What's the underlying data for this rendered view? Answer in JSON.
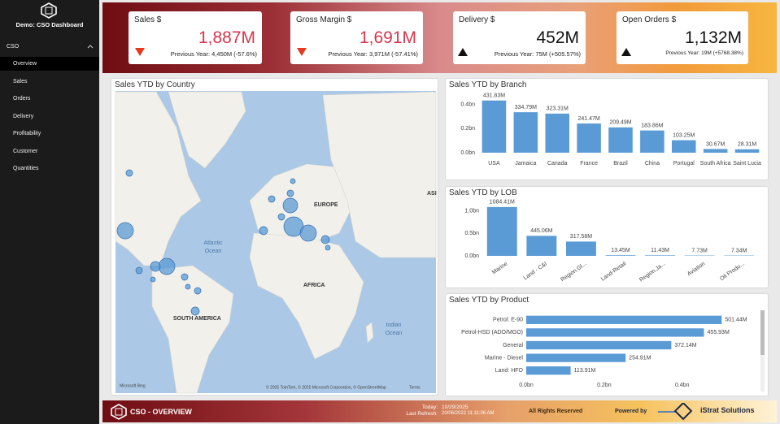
{
  "sidebar": {
    "title": "Demo: CSO Dashboard",
    "section": "CSO",
    "items": [
      "Overview",
      "Sales",
      "Orders",
      "Delivery",
      "Profitability",
      "Customer",
      "Quantities"
    ]
  },
  "kpis": [
    {
      "title": "Sales $",
      "value": "1,887M",
      "previous": "Previous Year: 4,450M (-57.6%)"
    },
    {
      "title": "Gross Margin $",
      "value": "1,691M",
      "previous": "Previous Year: 3,971M (-57.41%)"
    },
    {
      "title": "Delivery $",
      "value": "452M",
      "previous": "Previous Year: 75M (+505.57%)"
    },
    {
      "title": "Open Orders $",
      "value": "1,132M",
      "previous": "Previous Year: 19M (+5768.38%)"
    }
  ],
  "map": {
    "title": "Sales YTD by Country",
    "labels": [
      "EUROPE",
      "AFRICA",
      "SOUTH AMERICA",
      "Atlantic",
      "Ocean",
      "Indian",
      "Ocean",
      "ASI"
    ],
    "attribution": "Microsoft Bing",
    "copyright": "© 2025 TomTom, © 2025 Microsoft Corporation, © OpenStreetMap",
    "terms": "Terms"
  },
  "chart_data": [
    {
      "type": "bar",
      "title": "Sales YTD by Branch",
      "categories": [
        "USA",
        "Jamaica",
        "Canada",
        "France",
        "Brazil",
        "China",
        "Portugal",
        "South Africa",
        "Saint Lucia"
      ],
      "values": [
        0.43183,
        0.33479,
        0.32331,
        0.24147,
        0.20949,
        0.18386,
        0.10325,
        0.03067,
        0.02831
      ],
      "value_labels": [
        "431.83M",
        "334.79M",
        "323.31M",
        "241.47M",
        "209.49M",
        "183.86M",
        "103.25M",
        "30.67M",
        "28.31M"
      ],
      "ylim": [
        0,
        0.45
      ],
      "yticks": [
        {
          "value": 0,
          "label": "0.0bn"
        },
        {
          "value": 0.2,
          "label": "0.2bn"
        },
        {
          "value": 0.4,
          "label": "0.4bn"
        }
      ],
      "color": "#5b9bd5"
    },
    {
      "type": "bar",
      "title": "Sales YTD by LOB",
      "categories": [
        "Marine",
        "Land - C&I",
        "Region.Gl...",
        "Land-Retail",
        "Region.Ja...",
        "Aviation",
        "Oil Produ..."
      ],
      "values": [
        1.08441,
        0.44506,
        0.31758,
        0.01345,
        0.01143,
        0.00773,
        0.00734
      ],
      "value_labels": [
        "1084.41M",
        "445.06M",
        "317.58M",
        "13.45M",
        "11.43M",
        "7.73M",
        "7.34M"
      ],
      "ylim": [
        0,
        1.1
      ],
      "yticks": [
        {
          "value": 0,
          "label": "0.0bn"
        },
        {
          "value": 0.5,
          "label": "0.5bn"
        },
        {
          "value": 1,
          "label": "1.0bn"
        }
      ],
      "color": "#5b9bd5"
    },
    {
      "type": "barh",
      "title": "Sales YTD by Product",
      "categories": [
        "Petrol: E-90",
        "Petrol-HSD (ADO/MGO)",
        "General",
        "Marine - Diesel",
        "Land: HFO"
      ],
      "values": [
        0.50144,
        0.45593,
        0.37214,
        0.25491,
        0.11391
      ],
      "value_labels": [
        "501.44M",
        "455.93M",
        "372.14M",
        "254.91M",
        "113.91M"
      ],
      "xlim": [
        0,
        0.58
      ],
      "xticks": [
        {
          "value": 0,
          "label": "0.0bn"
        },
        {
          "value": 0.2,
          "label": "0.2bn"
        },
        {
          "value": 0.4,
          "label": "0.4bn"
        }
      ],
      "color": "#5b9bd5"
    }
  ],
  "footer": {
    "title": "CSO - OVERVIEW",
    "today_label": "Today:",
    "today": "10/29/2025",
    "refresh_label": "Last Refresh:",
    "refresh": "20/06/2022 11:11:06 AM",
    "rights": "All Rights Reserved",
    "powered": "Powered by",
    "brand": "iStrat Solutions"
  }
}
